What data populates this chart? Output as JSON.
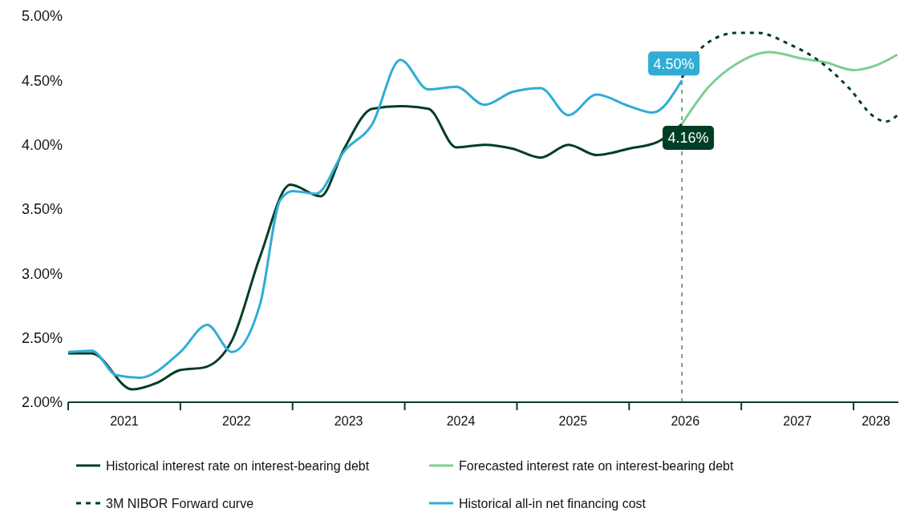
{
  "chart_data": {
    "type": "line",
    "xlim": [
      2021,
      2028.4
    ],
    "ylim": [
      2,
      5
    ],
    "yticks": [
      {
        "value": 2,
        "label": "2.00%"
      },
      {
        "value": 2.5,
        "label": "2.50%"
      },
      {
        "value": 3,
        "label": "3.00%"
      },
      {
        "value": 3.5,
        "label": "3.50%"
      },
      {
        "value": 4,
        "label": "4.00%"
      },
      {
        "value": 4.5,
        "label": "4.50%"
      },
      {
        "value": 5,
        "label": "5.00%"
      }
    ],
    "xticks": [
      {
        "value": 2021,
        "label": null
      },
      {
        "value": 2022,
        "label": null
      },
      {
        "value": 2023,
        "label": null
      },
      {
        "value": 2024,
        "label": null
      },
      {
        "value": 2025,
        "label": null
      },
      {
        "value": 2026,
        "label": null
      },
      {
        "value": 2027,
        "label": null
      },
      {
        "value": 2028,
        "label": null
      },
      {
        "value": 2021.5,
        "label": "2021"
      },
      {
        "value": 2022.5,
        "label": "2022"
      },
      {
        "value": 2023.5,
        "label": "2023"
      },
      {
        "value": 2024.5,
        "label": "2024"
      },
      {
        "value": 2025.5,
        "label": "2025"
      },
      {
        "value": 2026.5,
        "label": "2026"
      },
      {
        "value": 2027.5,
        "label": "2027"
      },
      {
        "value": 2028.2,
        "label": "2028"
      }
    ],
    "grid": false,
    "legend": "bottom",
    "marker": "none",
    "series": [
      {
        "name": "Historical interest rate on interest-bearing debt",
        "color": "#003d25",
        "line_style": "solid",
        "x": [
          2021,
          2021.21,
          2021.57,
          2021.79,
          2022,
          2022.21,
          2022.46,
          2022.71,
          2022.98,
          2023.25,
          2023.46,
          2023.71,
          2023.96,
          2024.21,
          2024.46,
          2024.71,
          2024.96,
          2025.21,
          2025.46,
          2025.71,
          2026,
          2026.25,
          2026.47
        ],
        "values": [
          2.38,
          2.38,
          2.1,
          2.15,
          2.25,
          2.27,
          2.48,
          3.13,
          3.69,
          3.6,
          3.97,
          4.28,
          4.3,
          4.28,
          3.98,
          4,
          3.97,
          3.9,
          4,
          3.92,
          3.97,
          4.02,
          4.16
        ]
      },
      {
        "name": "Forecasted interest rate on interest-bearing debt",
        "color": "#7dcf90",
        "line_style": "solid",
        "x": [
          2026.47,
          2026.71,
          2026.96,
          2027.25,
          2027.54,
          2027.75,
          2028,
          2028.18,
          2028.39
        ],
        "values": [
          4.16,
          4.45,
          4.63,
          4.72,
          4.67,
          4.64,
          4.58,
          4.61,
          4.7
        ]
      },
      {
        "name": "3M NIBOR Forward curve",
        "color": "#003d25",
        "line_style": "dashed",
        "x": [
          2026.47,
          2026.68,
          2026.96,
          2027.14,
          2027.43,
          2027.68,
          2027.96,
          2028.18,
          2028.29,
          2028.39
        ],
        "values": [
          4.52,
          4.78,
          4.87,
          4.87,
          4.78,
          4.66,
          4.44,
          4.22,
          4.18,
          4.23
        ]
      },
      {
        "name": "Historical all-in net financing cost",
        "color": "#2fadd5",
        "line_style": "solid",
        "x": [
          2021,
          2021.21,
          2021.43,
          2021.64,
          2022,
          2022.24,
          2022.46,
          2022.71,
          2022.89,
          2023,
          2023.21,
          2023.46,
          2023.71,
          2023.96,
          2024.21,
          2024.46,
          2024.71,
          2024.96,
          2025.21,
          2025.46,
          2025.71,
          2026,
          2026.21,
          2026.47
        ],
        "values": [
          2.39,
          2.4,
          2.21,
          2.19,
          2.39,
          2.6,
          2.39,
          2.76,
          3.57,
          3.64,
          3.62,
          3.95,
          4.16,
          4.66,
          4.43,
          4.45,
          4.31,
          4.41,
          4.44,
          4.23,
          4.39,
          4.3,
          4.25,
          4.5
        ]
      }
    ],
    "ref_lines": [
      {
        "axis": "x",
        "value": 2026.47,
        "color": "#003d25",
        "line_style": "dashed"
      }
    ],
    "annotations": [
      {
        "text": "4.50%",
        "x": 2026.47,
        "y": 4.5
      },
      {
        "text": "4.16%",
        "x": 2026.47,
        "y": 4.16
      }
    ]
  }
}
